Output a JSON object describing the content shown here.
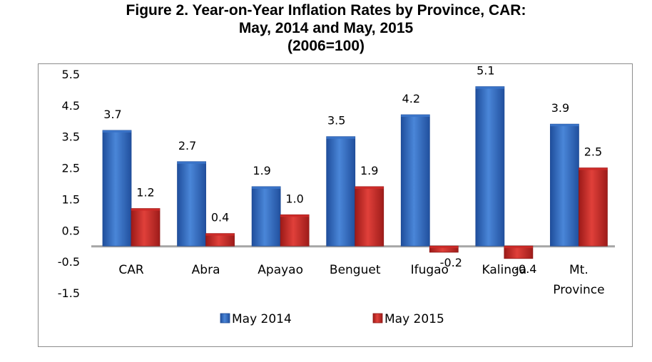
{
  "chart_data": {
    "type": "bar",
    "title_lines": [
      "Figure 2. Year-on-Year Inflation Rates by Province, CAR:",
      "May, 2014 and May, 2015",
      "(2006=100)"
    ],
    "categories": [
      [
        "CAR"
      ],
      [
        "Abra"
      ],
      [
        "Apayao"
      ],
      [
        "Benguet"
      ],
      [
        "Ifugao"
      ],
      [
        "Kalinga"
      ],
      [
        "Mt.",
        "Province"
      ]
    ],
    "series": [
      {
        "name": "May 2014",
        "values": [
          3.7,
          2.7,
          1.9,
          3.5,
          4.2,
          5.1,
          3.9
        ],
        "labels": [
          "3.7",
          "2.7",
          "1.9",
          "3.5",
          "4.2",
          "5.1",
          "3.9"
        ]
      },
      {
        "name": "May 2015",
        "values": [
          1.2,
          0.4,
          1.0,
          1.9,
          -0.2,
          -0.4,
          2.5
        ],
        "labels": [
          "1.2",
          "0.4",
          "1.0",
          "1.9",
          "-0.2",
          "-0.4",
          "2.5"
        ]
      }
    ],
    "y_ticks": [
      "5.5",
      "4.5",
      "3.5",
      "2.5",
      "1.5",
      "0.5",
      "-0.5",
      "-1.5"
    ],
    "ylim": [
      -1.5,
      5.5
    ],
    "grid": false,
    "legend_position": "bottom",
    "colors": {
      "May 2014": "#3a73c8",
      "May 2015": "#cc2a28"
    }
  }
}
